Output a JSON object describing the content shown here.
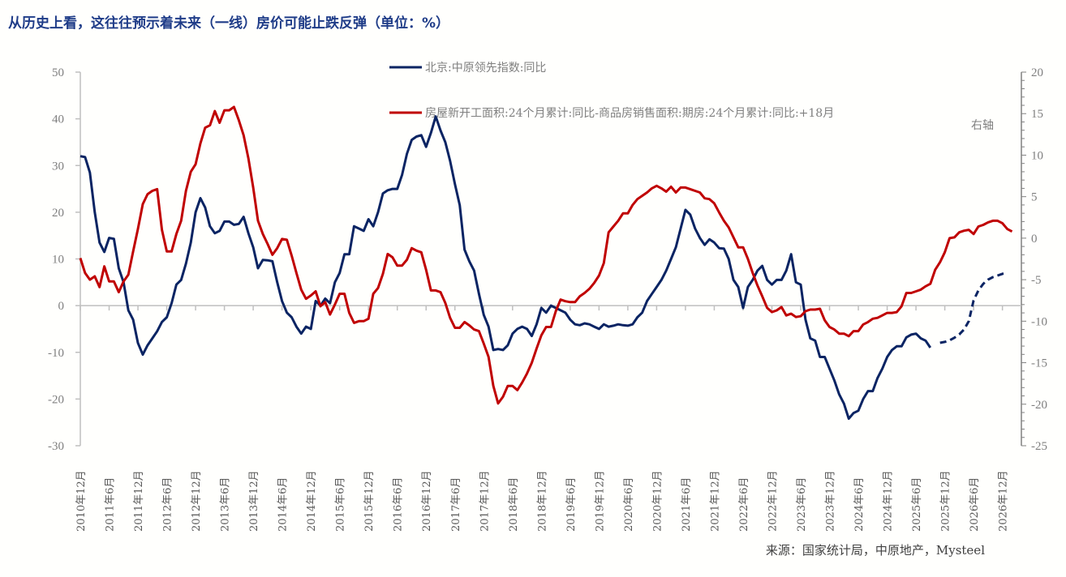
{
  "title": "从历史上看，这往往预示着未来（一线）房价可能止跌反弹（单位：%）",
  "source": "来源：国家统计局，中原地产，Mysteel",
  "right_axis_note": "右轴",
  "colors": {
    "blue": "#0a2463",
    "red": "#c00000",
    "title": "#1f3c88"
  },
  "chart_data": {
    "type": "line",
    "x_axis": {
      "type": "date-monthly",
      "range": [
        "2010-12",
        "2027-04"
      ],
      "tick_labels": [
        "2010年12月",
        "2011年6月",
        "2011年12月",
        "2012年6月",
        "2012年12月",
        "2013年6月",
        "2013年12月",
        "2014年6月",
        "2014年12月",
        "2015年6月",
        "2015年12月",
        "2016年6月",
        "2016年12月",
        "2017年6月",
        "2017年12月",
        "2018年6月",
        "2018年12月",
        "2019年6月",
        "2019年12月",
        "2020年6月",
        "2020年12月",
        "2021年6月",
        "2021年12月",
        "2022年6月",
        "2022年12月",
        "2023年6月",
        "2023年12月",
        "2024年6月",
        "2024年12月",
        "2025年6月",
        "2025年12月",
        "2026年6月",
        "2026年12月"
      ]
    },
    "y_left": {
      "range": [
        -30,
        50
      ],
      "ticks": [
        "-30",
        "-20",
        "-10",
        "0",
        "10",
        "20",
        "30",
        "40",
        "50"
      ]
    },
    "y_right": {
      "range": [
        -25,
        20
      ],
      "ticks": [
        "-25",
        "-20",
        "-15",
        "-10",
        "-5",
        "0",
        "5",
        "10",
        "15",
        "20"
      ]
    },
    "grid": false,
    "legend_placement": "top-center",
    "series": [
      {
        "name": "北京:中原领先指数:同比",
        "axis": "left",
        "color": "#0a2463",
        "style": "solid",
        "start": "2010-12",
        "values": [
          32,
          31.8,
          28.5,
          20,
          13.5,
          11.5,
          14.5,
          14.3,
          8,
          5,
          -1,
          -3,
          -8,
          -10.5,
          -8.5,
          -7,
          -5.5,
          -3.5,
          -2.5,
          0.5,
          4.5,
          5.5,
          9,
          13.5,
          20,
          23,
          21,
          17,
          15.5,
          16,
          18,
          18,
          17.3,
          17.5,
          19,
          15.5,
          12.5,
          8,
          9.8,
          9.7,
          9.5,
          5,
          1,
          -1.5,
          -2.5,
          -4.5,
          -6,
          -4.5,
          -5,
          1,
          0,
          1.5,
          0.5,
          5,
          7,
          11,
          11,
          17,
          16.5,
          16,
          18.5,
          17,
          20,
          24,
          24.7,
          25,
          25,
          28,
          32.5,
          35.5,
          36.2,
          36.5,
          34,
          37,
          40.5,
          37.5,
          35,
          31,
          26,
          21.5,
          12,
          9.5,
          7.5,
          2.5,
          -2,
          -4.5,
          -9.5,
          -9.3,
          -9.5,
          -8.5,
          -6,
          -5,
          -4.5,
          -5,
          -6.5,
          -4,
          -0.5,
          -1.5,
          0,
          -0.5,
          -1,
          -1.5,
          -3,
          -4,
          -4.2,
          -3.8,
          -4,
          -4.5,
          -5,
          -4,
          -4.5,
          -4.3,
          -4,
          -4.2,
          -4.3,
          -4,
          -2.5,
          -1.5,
          1,
          2.5,
          4,
          5.5,
          7.5,
          10,
          12.5,
          16.5,
          20.5,
          19.5,
          16.5,
          14.5,
          13,
          14.2,
          13.5,
          12.3,
          12.2,
          10,
          5.5,
          4,
          -0.5,
          4,
          5.5,
          7.5,
          8.5,
          5.5,
          4.5,
          5.5,
          5.5,
          7.5,
          11,
          5,
          4.5,
          -3,
          -7,
          -7.5,
          -11,
          -11,
          -13.5,
          -16,
          -19,
          -21,
          -24.2,
          -23,
          -22.5,
          -20,
          -18.3,
          -18.3,
          -15.5,
          -13.5,
          -11,
          -9.5,
          -8.7,
          -8.7,
          -6.8,
          -6.2,
          -6,
          -7,
          -7.5,
          -9
        ]
      },
      {
        "name": "房屋新开工面积:24个月累计:同比-商品房销售面积:期房:24个月累计:同比:+18月",
        "axis": "right",
        "color": "#c00000",
        "style": "solid",
        "start": "2010-12",
        "values": [
          -2.4,
          -4.2,
          -5,
          -4.6,
          -5.9,
          -3.4,
          -5.2,
          -5.2,
          -6.5,
          -5.2,
          -4.4,
          -1.6,
          1.1,
          4.1,
          5.3,
          5.7,
          5.9,
          1,
          -1.6,
          -1.6,
          0.5,
          2.1,
          5.7,
          8,
          8.9,
          11.4,
          13.3,
          13.6,
          15.3,
          13.9,
          15.4,
          15.4,
          15.8,
          14.2,
          12.4,
          9.6,
          6.1,
          2.1,
          0.5,
          -0.7,
          -2,
          -1.2,
          -0.1,
          -0.2,
          -2.1,
          -4.2,
          -6.2,
          -7.3,
          -6.9,
          -6.4,
          -8.2,
          -7.7,
          -9.2,
          -8,
          -6.7,
          -6.7,
          -9,
          -10.2,
          -10,
          -10,
          -9.7,
          -6.7,
          -6,
          -4.3,
          -1.9,
          -2.3,
          -3.3,
          -3.3,
          -2.6,
          -1.2,
          -1.5,
          -1.7,
          -3.8,
          -6.3,
          -6.3,
          -6.5,
          -7.8,
          -9.6,
          -10.8,
          -10.8,
          -10.1,
          -10.5,
          -11,
          -11.2,
          -12.7,
          -14.3,
          -17.8,
          -19.9,
          -19.1,
          -17.8,
          -17.8,
          -18.3,
          -17.4,
          -16.3,
          -15,
          -13.3,
          -11.7,
          -10.7,
          -10.7,
          -8.8,
          -7.4,
          -7.6,
          -7.7,
          -7.7,
          -7,
          -6.6,
          -6.1,
          -5.4,
          -4.5,
          -3,
          0.7,
          1.4,
          2.1,
          3,
          3,
          4,
          4.7,
          5.1,
          5.5,
          6,
          6.3,
          6,
          5.6,
          6.2,
          5.5,
          6.1,
          6.1,
          5.9,
          5.7,
          5.5,
          4.8,
          4.7,
          4.2,
          3.1,
          2.1,
          1.3,
          0.1,
          -1.1,
          -1.1,
          -2.5,
          -4.2,
          -5.7,
          -7,
          -8.4,
          -8.9,
          -8.7,
          -8.3,
          -9.3,
          -9.1,
          -9.5,
          -9.4,
          -8.8,
          -8.6,
          -8.6,
          -8.5,
          -9.9,
          -10.7,
          -11,
          -11.5,
          -11.5,
          -11.8,
          -11.2,
          -11.2,
          -10.4,
          -10.1,
          -9.7,
          -9.6,
          -9.3,
          -9,
          -9,
          -8.9,
          -8.2,
          -6.6,
          -6.6,
          -6.4,
          -6.2,
          -5.8,
          -5.5,
          -3.8,
          -2.9,
          -1.7,
          0,
          0.1,
          0.7,
          0.9,
          1,
          0.5,
          1.4,
          1.6,
          1.9,
          2.1,
          2.1,
          1.8,
          1.1,
          0.8
        ]
      },
      {
        "axis": "right",
        "color": "#0a2463",
        "style": "dashed",
        "start": "2025-11",
        "values": [
          -12.6,
          -12.5,
          -12.3,
          -12,
          -11.6,
          -11,
          -10,
          -7.5,
          -6.3,
          -5.5,
          -5,
          -4.7,
          -4.5,
          -4.3,
          -4.2
        ]
      }
    ]
  }
}
